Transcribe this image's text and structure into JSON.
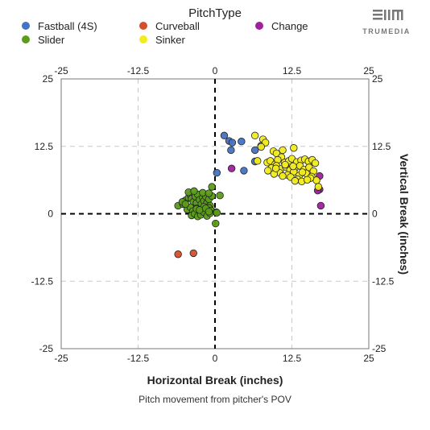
{
  "legend": {
    "title": "PitchType",
    "items": [
      {
        "name": "Fastball (4S)",
        "color": "#4472c4"
      },
      {
        "name": "Curveball",
        "color": "#d4502a"
      },
      {
        "name": "Change",
        "color": "#a020a0"
      },
      {
        "name": "Slider",
        "color": "#5b9c1a"
      },
      {
        "name": "Sinker",
        "color": "#f2ec1c"
      }
    ]
  },
  "logo": {
    "text": "TRUMEDIA"
  },
  "chart_data": {
    "type": "scatter",
    "xlabel": "Horizontal Break (inches)",
    "ylabel": "Vertical Break (inches)",
    "caption": "Pitch movement from pitcher's POV",
    "xlim": [
      -25,
      25
    ],
    "ylim": [
      -25,
      25
    ],
    "xticks": [
      "-25",
      "-12.5",
      "0",
      "12.5",
      "25"
    ],
    "yticks": [
      "25",
      "12.5",
      "0",
      "-12.5",
      "-25"
    ],
    "grid": true,
    "series": [
      {
        "name": "Fastball (4S)",
        "color": "#4472c4",
        "x": [
          1.5,
          2.3,
          2.8,
          2.6,
          4.3,
          6.5,
          7.5,
          6.5,
          4.7,
          0.3
        ],
        "y": [
          14.5,
          13.5,
          13.2,
          11.8,
          13.4,
          11.8,
          12.6,
          9.7,
          8.0,
          7.6
        ]
      },
      {
        "name": "Curveball",
        "color": "#d4502a",
        "x": [
          -6.0,
          -3.5
        ],
        "y": [
          -7.5,
          -7.3
        ]
      },
      {
        "name": "Change",
        "color": "#a020a0",
        "x": [
          2.7,
          17.0,
          17.0,
          16.7,
          17.2
        ],
        "y": [
          8.4,
          7.0,
          4.5,
          4.3,
          1.5
        ]
      },
      {
        "name": "Slider",
        "color": "#5b9c1a",
        "x": [
          -6.0,
          -5.2,
          -4.8,
          -4.3,
          -4.0,
          -3.8,
          -3.5,
          -3.2,
          -3.0,
          -2.8,
          -2.5,
          -2.2,
          -2.0,
          -1.8,
          -1.5,
          -1.3,
          -1.0,
          -0.8,
          -0.5,
          -4.5,
          -4.0,
          -3.6,
          -3.0,
          -2.6,
          -2.2,
          -1.8,
          -1.4,
          -1.0,
          -0.6,
          -3.8,
          -3.3,
          -2.8,
          -2.3,
          -1.8,
          -1.3,
          -0.8,
          -4.3,
          -3.4,
          -2.0,
          -1.0,
          -3.0,
          -2.5,
          -1.5,
          0.8,
          0.2,
          -5.3,
          -4.8,
          -0.5,
          0.3,
          -1.0,
          0.1
        ],
        "y": [
          1.5,
          1.8,
          2.5,
          3.0,
          3.5,
          2.8,
          2.2,
          3.2,
          2.0,
          3.6,
          2.6,
          1.8,
          3.0,
          2.4,
          3.2,
          2.0,
          2.7,
          1.5,
          3.3,
          0.8,
          1.2,
          0.5,
          1.0,
          0.2,
          0.8,
          1.3,
          0.4,
          1.1,
          0.6,
          -0.3,
          0.0,
          -0.5,
          -0.2,
          0.3,
          -0.4,
          0.1,
          4.0,
          4.2,
          3.9,
          3.8,
          0.9,
          0.7,
          1.0,
          3.4,
          0.3,
          2.2,
          1.8,
          5.0,
          0.2,
          0.4,
          -1.8
        ]
      },
      {
        "name": "Sinker",
        "color": "#f2ec1c",
        "x": [
          6.5,
          7.8,
          8.2,
          7.5,
          9.5,
          10.0,
          11.0,
          12.8,
          10.8,
          6.9,
          8.5,
          9.0,
          9.8,
          10.2,
          11.3,
          12.0,
          12.5,
          13.3,
          14.0,
          14.6,
          15.2,
          15.8,
          16.3,
          9.2,
          10.0,
          10.7,
          11.5,
          12.2,
          13.0,
          13.8,
          14.5,
          15.3,
          16.0,
          10.5,
          11.8,
          12.8,
          13.7,
          14.8,
          15.7,
          16.5,
          9.6,
          11.0,
          12.3,
          13.4,
          16.8,
          8.6,
          9.9,
          11.4,
          12.7,
          14.2,
          15.5,
          13.0,
          14.1,
          15.0
        ],
        "y": [
          14.5,
          13.8,
          13.2,
          12.4,
          11.6,
          11.2,
          11.8,
          12.2,
          10.5,
          9.8,
          9.5,
          9.8,
          9.2,
          10.0,
          9.5,
          9.8,
          10.2,
          9.6,
          9.9,
          10.1,
          9.7,
          10.0,
          9.4,
          8.5,
          8.9,
          8.3,
          8.7,
          8.1,
          8.5,
          8.9,
          8.2,
          8.6,
          7.9,
          7.6,
          7.2,
          7.8,
          7.1,
          7.5,
          6.9,
          6.2,
          7.4,
          7.0,
          6.8,
          6.4,
          5.0,
          8.0,
          8.4,
          9.1,
          8.8,
          7.7,
          6.6,
          6.1,
          6.0,
          6.3
        ]
      }
    ]
  }
}
